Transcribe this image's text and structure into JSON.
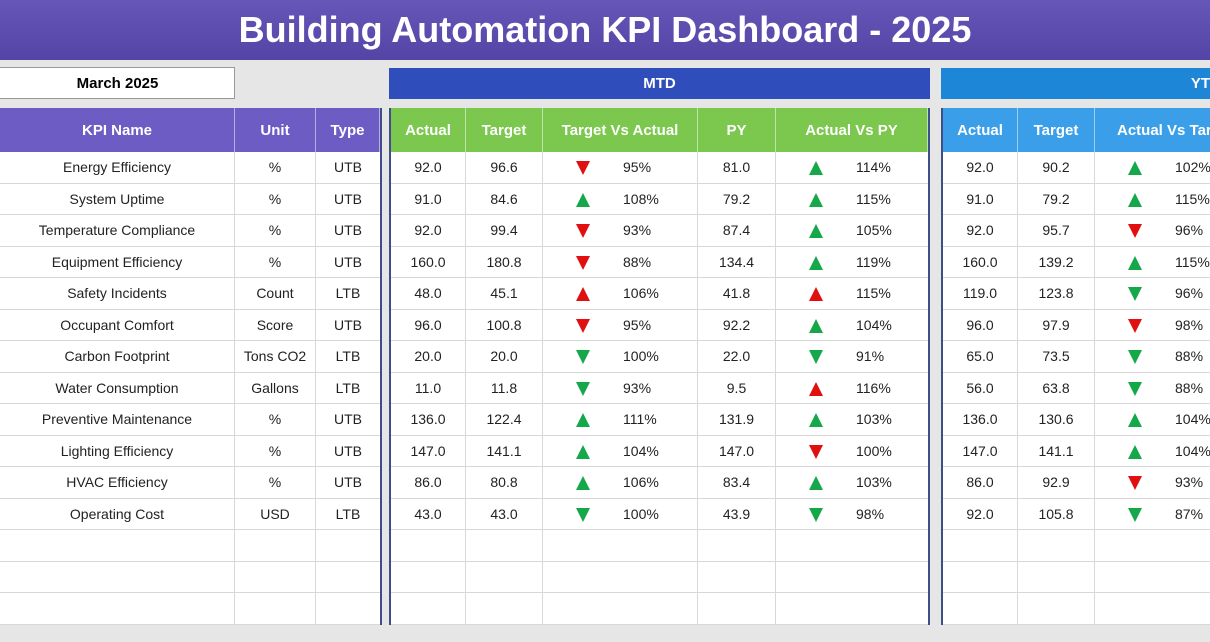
{
  "header": {
    "title": "Building Automation KPI Dashboard - 2025",
    "month": "March 2025"
  },
  "sections": {
    "mtd": "MTD",
    "ytd": "YT"
  },
  "table": {
    "columns": [
      "KPI Name",
      "Unit",
      "Type",
      "Actual",
      "Target",
      "Target Vs Actual",
      "PY",
      "Actual Vs PY",
      "Actual",
      "Target",
      "Actual Vs Targ"
    ],
    "rows": [
      [
        "Energy Efficiency",
        "%",
        "UTB",
        "92.0",
        "96.6",
        "95%",
        "81.0",
        "114%",
        "92.0",
        "90.2",
        "102%"
      ],
      [
        "System Uptime",
        "%",
        "UTB",
        "91.0",
        "84.6",
        "108%",
        "79.2",
        "115%",
        "91.0",
        "79.2",
        "115%"
      ],
      [
        "Temperature Compliance",
        "%",
        "UTB",
        "92.0",
        "99.4",
        "93%",
        "87.4",
        "105%",
        "92.0",
        "95.7",
        "96%"
      ],
      [
        "Equipment Efficiency",
        "%",
        "UTB",
        "160.0",
        "180.8",
        "88%",
        "134.4",
        "119%",
        "160.0",
        "139.2",
        "115%"
      ],
      [
        "Safety Incidents",
        "Count",
        "LTB",
        "48.0",
        "45.1",
        "106%",
        "41.8",
        "115%",
        "119.0",
        "123.8",
        "96%"
      ],
      [
        "Occupant Comfort",
        "Score",
        "UTB",
        "96.0",
        "100.8",
        "95%",
        "92.2",
        "104%",
        "96.0",
        "97.9",
        "98%"
      ],
      [
        "Carbon Footprint",
        "Tons CO2",
        "LTB",
        "20.0",
        "20.0",
        "100%",
        "22.0",
        "91%",
        "65.0",
        "73.5",
        "88%"
      ],
      [
        "Water Consumption",
        "Gallons",
        "LTB",
        "11.0",
        "11.8",
        "93%",
        "9.5",
        "116%",
        "56.0",
        "63.8",
        "88%"
      ],
      [
        "Preventive Maintenance",
        "%",
        "UTB",
        "136.0",
        "122.4",
        "111%",
        "131.9",
        "103%",
        "136.0",
        "130.6",
        "104%"
      ],
      [
        "Lighting Efficiency",
        "%",
        "UTB",
        "147.0",
        "141.1",
        "104%",
        "147.0",
        "100%",
        "147.0",
        "141.1",
        "104%"
      ],
      [
        "HVAC Efficiency",
        "%",
        "UTB",
        "86.0",
        "80.8",
        "106%",
        "83.4",
        "103%",
        "86.0",
        "92.9",
        "93%"
      ],
      [
        "Operating Cost",
        "USD",
        "LTB",
        "43.0",
        "43.0",
        "100%",
        "43.9",
        "98%",
        "92.0",
        "105.8",
        "87%"
      ]
    ]
  }
}
